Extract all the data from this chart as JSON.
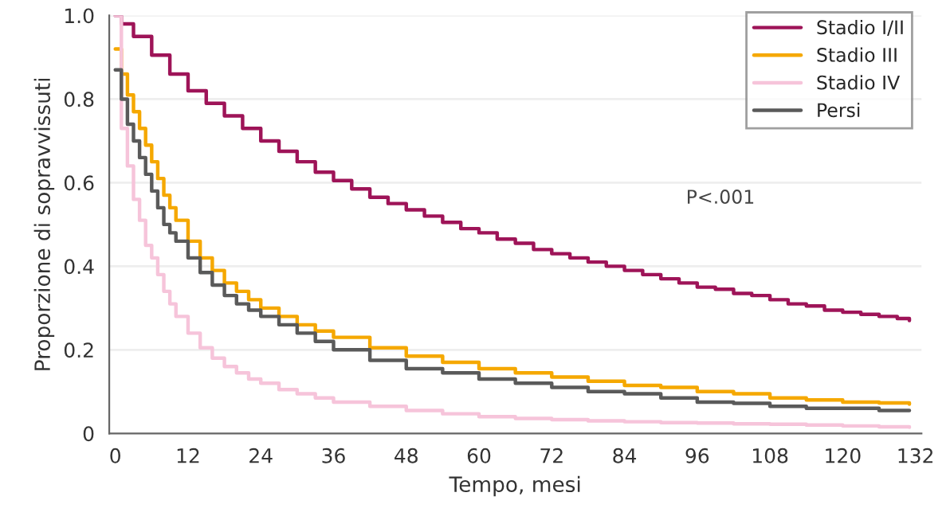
{
  "chart_data": {
    "type": "step",
    "xlabel": "Tempo, mesi",
    "ylabel": "Proporzione di sopravvissuti",
    "xlim": [
      -1,
      133
    ],
    "ylim": [
      0,
      1
    ],
    "xticks": [
      0,
      12,
      24,
      36,
      48,
      60,
      72,
      84,
      96,
      108,
      120,
      132
    ],
    "yticks": [
      {
        "value": 0,
        "label": "0"
      },
      0.2,
      0.4,
      0.6,
      0.8,
      {
        "value": 1,
        "label": "1.0"
      }
    ],
    "grid": "y",
    "legend": "top right",
    "annotations": [
      "P<.001"
    ],
    "series": [
      {
        "name": "Stadio I/II",
        "color": "#9e1458",
        "x": [
          0,
          1,
          3,
          6,
          9,
          12,
          15,
          18,
          21,
          24,
          27,
          30,
          33,
          36,
          39,
          42,
          45,
          48,
          51,
          54,
          57,
          60,
          63,
          66,
          69,
          72,
          75,
          78,
          81,
          84,
          87,
          90,
          93,
          96,
          99,
          102,
          105,
          108,
          111,
          114,
          117,
          120,
          123,
          126,
          129,
          131
        ],
        "values": [
          1.0,
          0.98,
          0.95,
          0.905,
          0.86,
          0.82,
          0.79,
          0.76,
          0.73,
          0.7,
          0.675,
          0.65,
          0.625,
          0.605,
          0.585,
          0.565,
          0.55,
          0.535,
          0.52,
          0.505,
          0.49,
          0.48,
          0.465,
          0.455,
          0.44,
          0.43,
          0.42,
          0.41,
          0.4,
          0.39,
          0.38,
          0.37,
          0.36,
          0.35,
          0.345,
          0.335,
          0.33,
          0.32,
          0.31,
          0.305,
          0.295,
          0.29,
          0.285,
          0.28,
          0.275,
          0.27
        ]
      },
      {
        "name": "Stadio III",
        "color": "#f5a800",
        "x": [
          0,
          1,
          2,
          3,
          4,
          5,
          6,
          7,
          8,
          9,
          10,
          12,
          14,
          16,
          18,
          20,
          22,
          24,
          27,
          30,
          33,
          36,
          42,
          48,
          54,
          60,
          66,
          72,
          78,
          84,
          90,
          96,
          102,
          108,
          114,
          120,
          126,
          131
        ],
        "values": [
          0.92,
          0.86,
          0.81,
          0.77,
          0.73,
          0.69,
          0.65,
          0.61,
          0.57,
          0.54,
          0.51,
          0.46,
          0.42,
          0.39,
          0.36,
          0.34,
          0.32,
          0.3,
          0.28,
          0.26,
          0.245,
          0.23,
          0.205,
          0.185,
          0.17,
          0.155,
          0.145,
          0.135,
          0.125,
          0.115,
          0.11,
          0.1,
          0.095,
          0.085,
          0.08,
          0.075,
          0.073,
          0.07
        ]
      },
      {
        "name": "Stadio IV",
        "color": "#f6c4da",
        "x": [
          0,
          1,
          2,
          3,
          4,
          5,
          6,
          7,
          8,
          9,
          10,
          12,
          14,
          16,
          18,
          20,
          22,
          24,
          27,
          30,
          33,
          36,
          42,
          48,
          54,
          60,
          66,
          72,
          78,
          84,
          90,
          96,
          102,
          108,
          114,
          120,
          126,
          131
        ],
        "values": [
          1.0,
          0.73,
          0.64,
          0.56,
          0.51,
          0.45,
          0.42,
          0.38,
          0.34,
          0.31,
          0.28,
          0.24,
          0.205,
          0.18,
          0.16,
          0.145,
          0.13,
          0.12,
          0.105,
          0.095,
          0.085,
          0.075,
          0.065,
          0.055,
          0.047,
          0.04,
          0.036,
          0.033,
          0.03,
          0.028,
          0.026,
          0.025,
          0.023,
          0.022,
          0.02,
          0.018,
          0.016,
          0.015
        ]
      },
      {
        "name": "Persi",
        "color": "#5a5a5a",
        "x": [
          0,
          1,
          2,
          3,
          4,
          5,
          6,
          7,
          8,
          9,
          10,
          12,
          14,
          16,
          18,
          20,
          22,
          24,
          27,
          30,
          33,
          36,
          42,
          48,
          54,
          60,
          66,
          72,
          78,
          84,
          90,
          96,
          102,
          108,
          114,
          120,
          126,
          131
        ],
        "values": [
          0.87,
          0.8,
          0.74,
          0.7,
          0.66,
          0.62,
          0.58,
          0.54,
          0.5,
          0.48,
          0.46,
          0.42,
          0.385,
          0.355,
          0.33,
          0.31,
          0.295,
          0.28,
          0.26,
          0.24,
          0.22,
          0.2,
          0.175,
          0.155,
          0.145,
          0.13,
          0.12,
          0.11,
          0.1,
          0.095,
          0.085,
          0.075,
          0.072,
          0.065,
          0.06,
          0.06,
          0.055,
          0.055
        ]
      }
    ]
  }
}
